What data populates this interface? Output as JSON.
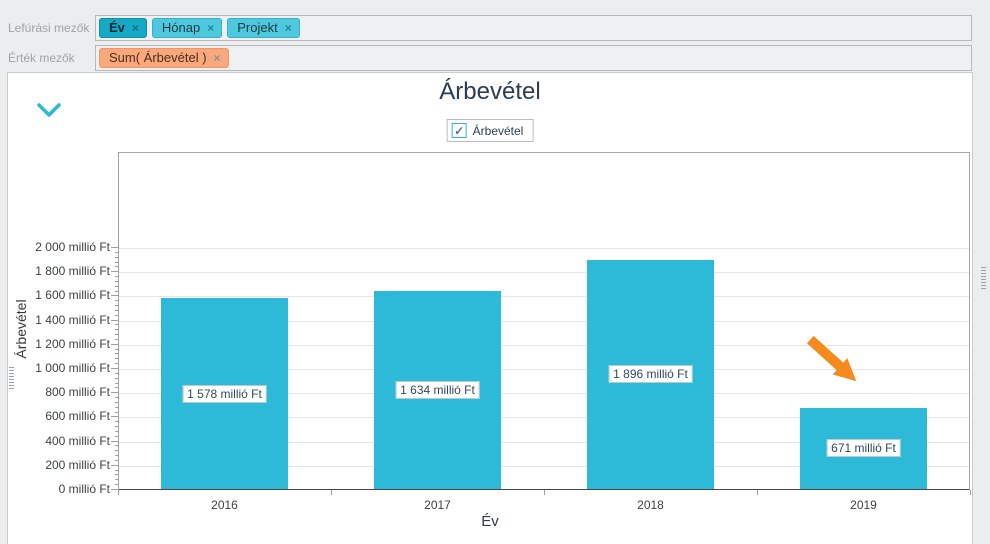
{
  "field_wells": {
    "remove_glyph": "×",
    "rows": [
      {
        "name": "drill-fields",
        "label": "Lefúrási mezők",
        "chips": [
          {
            "label": "Év",
            "variant": "selected"
          },
          {
            "label": "Hónap",
            "variant": "dimension"
          },
          {
            "label": "Projekt",
            "variant": "dimension"
          }
        ]
      },
      {
        "name": "value-fields",
        "label": "Érték mezők",
        "chips": [
          {
            "label": "Sum( Árbevétel )",
            "variant": "value"
          }
        ]
      }
    ]
  },
  "chart": {
    "title": "Árbevétel",
    "legend": {
      "label": "Árbevétel",
      "checked": true,
      "check_glyph": "✓"
    }
  },
  "chart_data": {
    "type": "bar",
    "title": "Árbevétel",
    "categories": [
      "2016",
      "2017",
      "2018",
      "2019"
    ],
    "values": [
      1578,
      1634,
      1896,
      671
    ],
    "value_labels": [
      "1 578 millió Ft",
      "1 634 millió Ft",
      "1 896 millió Ft",
      "671 millió Ft"
    ],
    "xlabel": "Év",
    "ylabel": "Árbevétel",
    "ylim": [
      0,
      2000
    ],
    "ytick_step": 200,
    "minor_tick_step": 40,
    "ytick_labels": [
      "0 millió Ft",
      "200 millió Ft",
      "400 millió Ft",
      "600 millió Ft",
      "800 millió Ft",
      "1 000 millió Ft",
      "1 200 millió Ft",
      "1 400 millió Ft",
      "1 600 millió Ft",
      "1 800 millió Ft",
      "2 000 millió Ft"
    ],
    "grid": true,
    "legend_position": "top",
    "bar_color": "#2cbad8",
    "annotation": {
      "type": "arrow",
      "color": "#f68a1f",
      "target_category": "2019"
    }
  },
  "colors": {
    "accent_cyan": "#2cbad8",
    "chip_selected_bg": "#14a9c4",
    "chip_dimension_bg": "#4fc8de",
    "chip_value_bg": "#f9a87d",
    "arrow_orange": "#f68a1f",
    "title_text": "#2c3c55"
  }
}
